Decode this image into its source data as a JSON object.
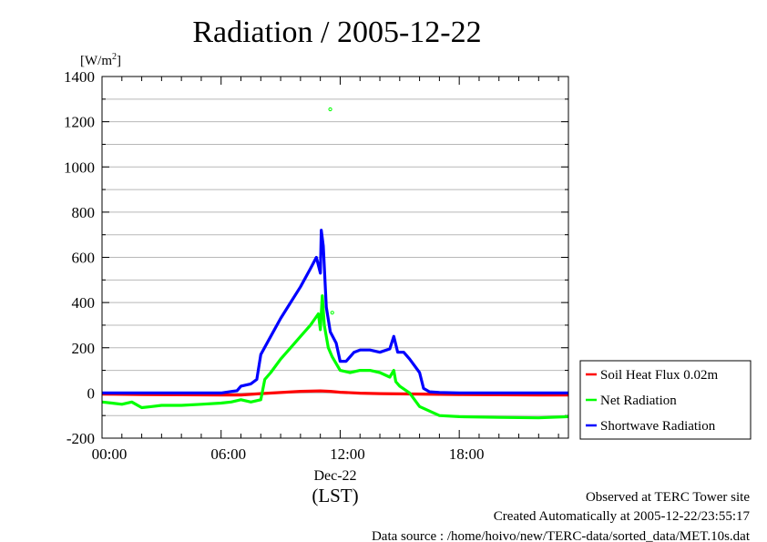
{
  "chart_data": {
    "type": "line",
    "title": "Radiation / 2005-12-22",
    "ylabel_unit": "[W/m",
    "ylabel_unit_sup": "2",
    "ylabel_unit_close": "]",
    "xlabel_date": "Dec-22",
    "xlabel_unit": "(LST)",
    "x_range_hours": [
      0,
      23.5
    ],
    "ylim": [
      -200,
      1400
    ],
    "yticks": [
      -200,
      0,
      200,
      400,
      600,
      800,
      1000,
      1200,
      1400
    ],
    "ytick_labels": [
      "-200",
      "0",
      "200",
      "400",
      "600",
      "800",
      "1000",
      "1200",
      "1400"
    ],
    "xticks_hours": [
      0,
      6,
      12,
      18
    ],
    "xtick_labels": [
      "00:00",
      "06:00",
      "12:00",
      "18:00"
    ],
    "grid": true,
    "legend_position": "right",
    "series": [
      {
        "name": "Soil Heat Flux 0.02m",
        "color": "#ff0000",
        "points": [
          [
            0,
            -5
          ],
          [
            2,
            -7
          ],
          [
            4,
            -8
          ],
          [
            6,
            -9
          ],
          [
            7,
            -9
          ],
          [
            8,
            -3
          ],
          [
            9,
            2
          ],
          [
            10,
            7
          ],
          [
            11,
            9
          ],
          [
            11.5,
            7
          ],
          [
            12,
            3
          ],
          [
            13,
            -1
          ],
          [
            14,
            -3
          ],
          [
            16,
            -5
          ],
          [
            18,
            -7
          ],
          [
            20,
            -8
          ],
          [
            22,
            -9
          ],
          [
            23.5,
            -9
          ]
        ]
      },
      {
        "name": "Net Radiation",
        "color": "#00ff00",
        "points": [
          [
            0,
            -40
          ],
          [
            0.5,
            -45
          ],
          [
            1,
            -50
          ],
          [
            1.5,
            -40
          ],
          [
            2,
            -65
          ],
          [
            2.5,
            -60
          ],
          [
            3,
            -55
          ],
          [
            3.5,
            -55
          ],
          [
            4,
            -55
          ],
          [
            5,
            -50
          ],
          [
            6,
            -45
          ],
          [
            6.5,
            -40
          ],
          [
            7,
            -30
          ],
          [
            7.5,
            -40
          ],
          [
            8,
            -30
          ],
          [
            8.2,
            60
          ],
          [
            8.5,
            90
          ],
          [
            9,
            150
          ],
          [
            9.5,
            200
          ],
          [
            10,
            250
          ],
          [
            10.5,
            300
          ],
          [
            10.9,
            350
          ],
          [
            11,
            280
          ],
          [
            11.1,
            430
          ],
          [
            11.2,
            300
          ],
          [
            11.4,
            200
          ],
          [
            11.6,
            160
          ],
          [
            12,
            100
          ],
          [
            12.5,
            90
          ],
          [
            13,
            100
          ],
          [
            13.5,
            100
          ],
          [
            14,
            90
          ],
          [
            14.5,
            70
          ],
          [
            14.7,
            100
          ],
          [
            14.8,
            50
          ],
          [
            15,
            30
          ],
          [
            15.5,
            0
          ],
          [
            16,
            -60
          ],
          [
            17,
            -100
          ],
          [
            18,
            -105
          ],
          [
            20,
            -108
          ],
          [
            22,
            -110
          ],
          [
            23.5,
            -105
          ]
        ]
      },
      {
        "name": "Shortwave Radiation",
        "color": "#0000ff",
        "points": [
          [
            0,
            0
          ],
          [
            2,
            0
          ],
          [
            4,
            0
          ],
          [
            6,
            0
          ],
          [
            6.8,
            10
          ],
          [
            7,
            30
          ],
          [
            7.5,
            40
          ],
          [
            7.8,
            60
          ],
          [
            8,
            170
          ],
          [
            8.5,
            250
          ],
          [
            9,
            330
          ],
          [
            9.5,
            400
          ],
          [
            10,
            470
          ],
          [
            10.5,
            550
          ],
          [
            10.8,
            600
          ],
          [
            11,
            530
          ],
          [
            11.05,
            720
          ],
          [
            11.15,
            650
          ],
          [
            11.3,
            380
          ],
          [
            11.5,
            270
          ],
          [
            11.8,
            220
          ],
          [
            12,
            140
          ],
          [
            12.3,
            140
          ],
          [
            12.7,
            180
          ],
          [
            13,
            190
          ],
          [
            13.5,
            190
          ],
          [
            14,
            180
          ],
          [
            14.5,
            195
          ],
          [
            14.7,
            250
          ],
          [
            14.9,
            180
          ],
          [
            15.2,
            180
          ],
          [
            15.5,
            150
          ],
          [
            16,
            90
          ],
          [
            16.2,
            20
          ],
          [
            16.5,
            5
          ],
          [
            17,
            2
          ],
          [
            18,
            0
          ],
          [
            20,
            0
          ],
          [
            22,
            0
          ],
          [
            23.5,
            0
          ]
        ]
      }
    ],
    "outliers": [
      {
        "series": "Net Radiation",
        "x": 11.5,
        "y": 1255
      },
      {
        "series": "Net Radiation",
        "x": 11.6,
        "y": 355
      }
    ]
  },
  "footer": {
    "line1": "Observed at TERC Tower site",
    "line2": "Created Automatically at 2005-12-22/23:55:17",
    "line3": "Data source : /home/hoivo/new/TERC-data/sorted_data/MET.10s.dat"
  }
}
